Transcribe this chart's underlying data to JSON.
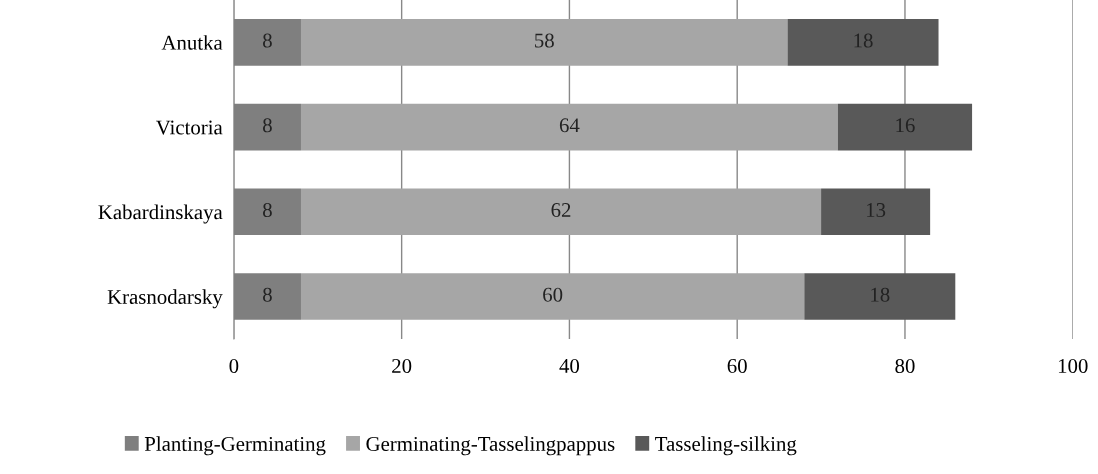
{
  "chart_data": {
    "type": "bar",
    "orientation": "horizontal",
    "stacked": true,
    "categories": [
      "Anutka",
      "Victoria",
      "Kabardinskaya",
      "Krasnodarsky"
    ],
    "series": [
      {
        "name": "Planting-Germinating",
        "color": "#7f7f7f",
        "values": [
          8,
          8,
          8,
          8
        ]
      },
      {
        "name": "Germinating-Tasselingpappus",
        "color": "#a6a6a6",
        "values": [
          58,
          64,
          62,
          60
        ]
      },
      {
        "name": "Tasseling-silking",
        "color": "#595959",
        "values": [
          18,
          16,
          13,
          18
        ]
      }
    ],
    "xlim": [
      0,
      100
    ],
    "xticks": [
      0,
      20,
      40,
      60,
      80,
      100
    ],
    "grid": "x",
    "legend": "bottom",
    "data_labels": true
  }
}
